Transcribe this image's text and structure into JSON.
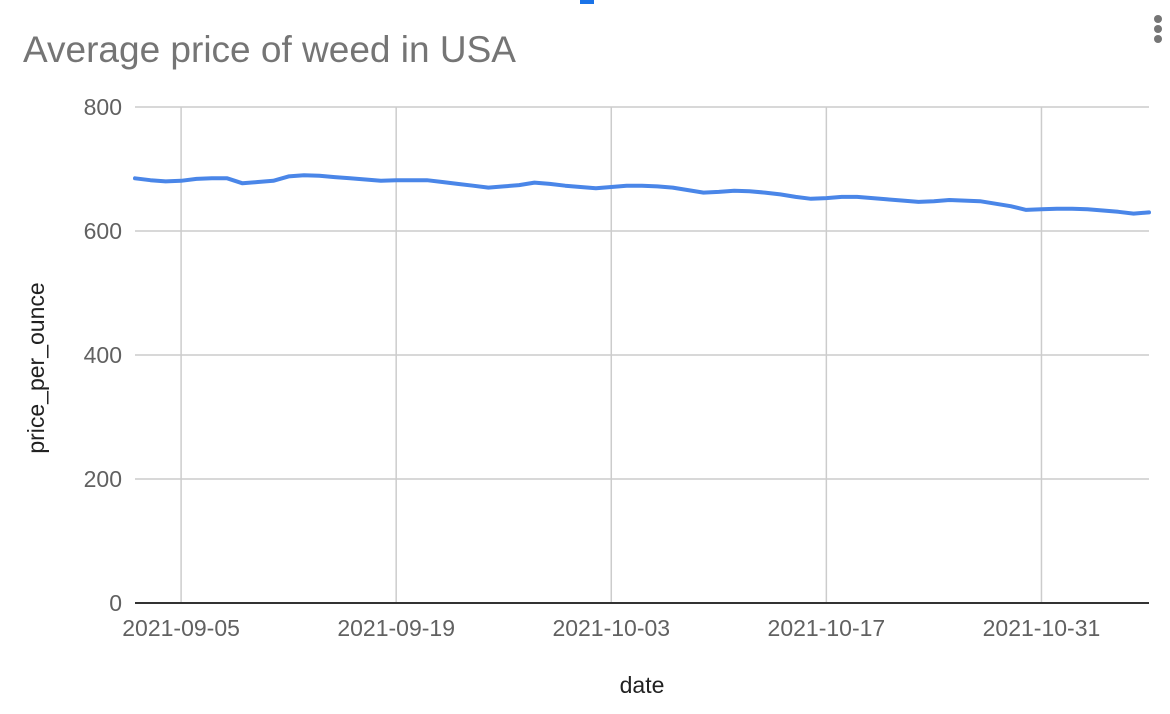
{
  "chart_data": {
    "type": "line",
    "title": "Average price of weed in USA",
    "xlabel": "date",
    "ylabel": "price_per_ounce",
    "ylim": [
      0,
      800
    ],
    "yticks": [
      0,
      200,
      400,
      600,
      800
    ],
    "xticks": [
      "2021-09-05",
      "2021-09-19",
      "2021-10-03",
      "2021-10-17",
      "2021-10-31"
    ],
    "x_start": "2021-09-02",
    "x_end": "2021-11-07",
    "grid": true,
    "legend": "none",
    "series": [
      {
        "color": "#4a86e8",
        "x": [
          "2021-09-02",
          "2021-09-03",
          "2021-09-04",
          "2021-09-05",
          "2021-09-06",
          "2021-09-07",
          "2021-09-08",
          "2021-09-09",
          "2021-09-10",
          "2021-09-11",
          "2021-09-12",
          "2021-09-13",
          "2021-09-14",
          "2021-09-15",
          "2021-09-16",
          "2021-09-17",
          "2021-09-18",
          "2021-09-19",
          "2021-09-20",
          "2021-09-21",
          "2021-09-22",
          "2021-09-23",
          "2021-09-24",
          "2021-09-25",
          "2021-09-26",
          "2021-09-27",
          "2021-09-28",
          "2021-09-29",
          "2021-09-30",
          "2021-10-01",
          "2021-10-02",
          "2021-10-03",
          "2021-10-04",
          "2021-10-05",
          "2021-10-06",
          "2021-10-07",
          "2021-10-08",
          "2021-10-09",
          "2021-10-10",
          "2021-10-11",
          "2021-10-12",
          "2021-10-13",
          "2021-10-14",
          "2021-10-15",
          "2021-10-16",
          "2021-10-17",
          "2021-10-18",
          "2021-10-19",
          "2021-10-20",
          "2021-10-21",
          "2021-10-22",
          "2021-10-23",
          "2021-10-24",
          "2021-10-25",
          "2021-10-26",
          "2021-10-27",
          "2021-10-28",
          "2021-10-29",
          "2021-10-30",
          "2021-10-31",
          "2021-11-01",
          "2021-11-02",
          "2021-11-03",
          "2021-11-04",
          "2021-11-05",
          "2021-11-06",
          "2021-11-07"
        ],
        "values": [
          685,
          682,
          680,
          681,
          684,
          685,
          685,
          677,
          679,
          681,
          688,
          690,
          689,
          687,
          685,
          683,
          681,
          682,
          682,
          682,
          679,
          676,
          673,
          670,
          672,
          674,
          678,
          676,
          673,
          671,
          669,
          671,
          673,
          673,
          672,
          670,
          666,
          662,
          663,
          665,
          664,
          662,
          659,
          655,
          652,
          653,
          655,
          655,
          653,
          651,
          649,
          647,
          648,
          650,
          649,
          648,
          644,
          640,
          634,
          635,
          636,
          636,
          635,
          633,
          631,
          628,
          630
        ]
      }
    ]
  },
  "header": {
    "menu_icon": "vertical-ellipsis-icon",
    "tab_indicator_color": "#1a73e8"
  }
}
